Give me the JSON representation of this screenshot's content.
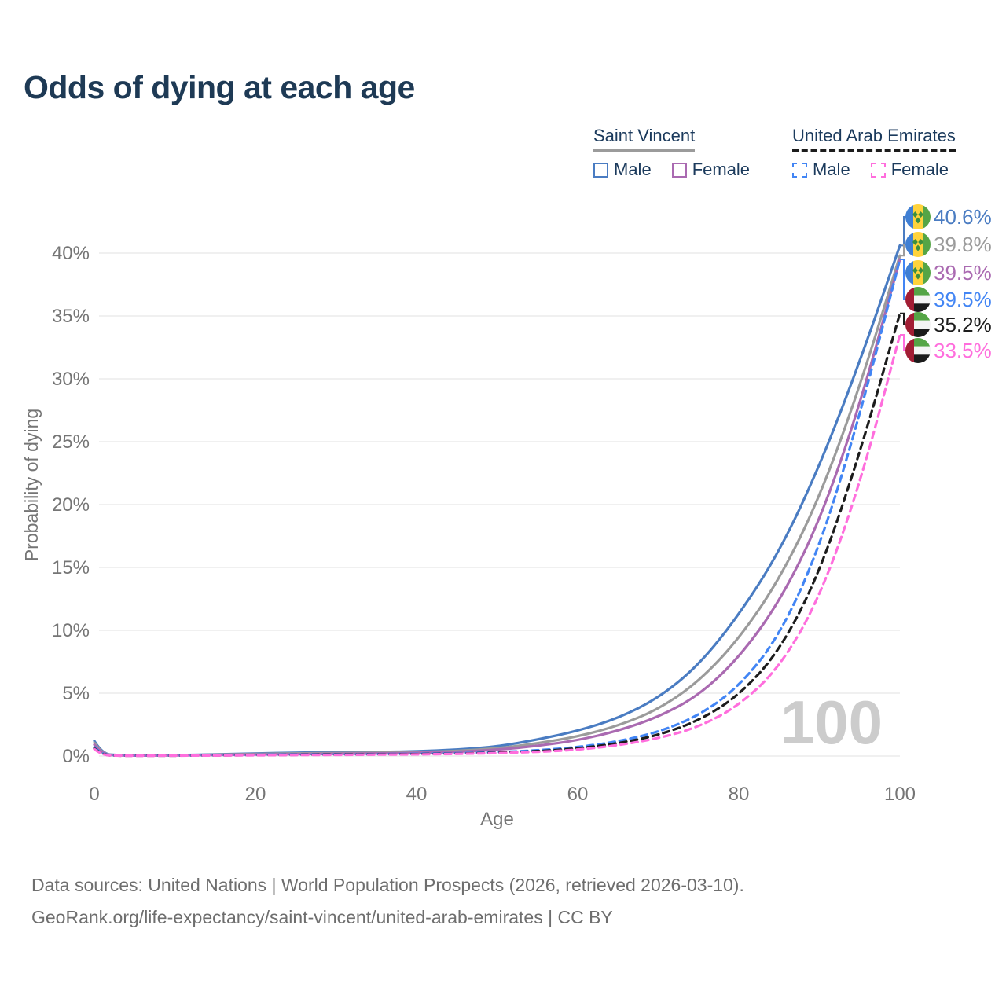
{
  "chart_data": {
    "type": "line",
    "title": "Odds of dying at each age",
    "xlabel": "Age",
    "ylabel": "Probability of dying",
    "watermark": "100",
    "x_tick_values": [
      0,
      20,
      40,
      60,
      80,
      100
    ],
    "x_tick_labels": [
      "0",
      "20",
      "40",
      "60",
      "80",
      "100"
    ],
    "y_tick_values": [
      0,
      5,
      10,
      15,
      20,
      25,
      30,
      35,
      40
    ],
    "y_tick_labels": [
      "0%",
      "5%",
      "10%",
      "15%",
      "20%",
      "25%",
      "30%",
      "35%",
      "40%"
    ],
    "xlim": [
      0,
      100
    ],
    "ylim_pct": [
      0,
      43
    ],
    "grid": "horizontal-only",
    "legend_position": "top-right",
    "ages": [
      0,
      1,
      3,
      5,
      10,
      15,
      20,
      25,
      30,
      35,
      40,
      45,
      50,
      55,
      60,
      65,
      70,
      75,
      80,
      85,
      90,
      95,
      100
    ],
    "series": [
      {
        "name": "Saint Vincent Male",
        "country": "Saint Vincent",
        "sex": "Male",
        "style": "solid",
        "color": "#4a7cc2",
        "flag": "saint-vincent-flag",
        "end_label": "40.6%",
        "end_value": 40.6,
        "values": [
          1.2,
          0.15,
          0.07,
          0.06,
          0.07,
          0.12,
          0.2,
          0.27,
          0.3,
          0.32,
          0.37,
          0.5,
          0.75,
          1.3,
          2.0,
          3.0,
          4.6,
          7.2,
          11.2,
          16.2,
          23.0,
          31.3,
          40.6
        ]
      },
      {
        "name": "Saint Vincent Both sexes",
        "country": "Saint Vincent",
        "sex": "Both",
        "style": "solid",
        "color": "#9b9b9b",
        "flag": "saint-vincent-flag",
        "end_label": "39.8%",
        "end_value": 39.8,
        "values": [
          1.05,
          0.13,
          0.06,
          0.05,
          0.06,
          0.1,
          0.16,
          0.21,
          0.24,
          0.26,
          0.3,
          0.4,
          0.6,
          1.0,
          1.55,
          2.4,
          3.7,
          5.9,
          9.3,
          14.0,
          20.5,
          29.3,
          39.8
        ]
      },
      {
        "name": "Saint Vincent Female",
        "country": "Saint Vincent",
        "sex": "Female",
        "style": "solid",
        "color": "#aa6ab1",
        "flag": "saint-vincent-flag",
        "end_label": "39.5%",
        "end_value": 39.5,
        "values": [
          0.9,
          0.11,
          0.05,
          0.04,
          0.05,
          0.08,
          0.12,
          0.15,
          0.18,
          0.2,
          0.25,
          0.33,
          0.5,
          0.8,
          1.25,
          2.0,
          3.1,
          4.8,
          7.8,
          12.2,
          18.6,
          27.8,
          39.5
        ]
      },
      {
        "name": "United Arab Emirates Male",
        "country": "United Arab Emirates",
        "sex": "Male",
        "style": "dashed",
        "color": "#4285f4",
        "flag": "uae-flag",
        "end_label": "39.5%",
        "end_value": 39.5,
        "values": [
          0.7,
          0.08,
          0.04,
          0.03,
          0.04,
          0.06,
          0.1,
          0.12,
          0.13,
          0.15,
          0.18,
          0.22,
          0.3,
          0.45,
          0.7,
          1.15,
          1.9,
          3.2,
          5.5,
          9.5,
          16.5,
          27.0,
          39.5
        ]
      },
      {
        "name": "United Arab Emirates Both sexes",
        "country": "United Arab Emirates",
        "sex": "Both",
        "style": "dashed",
        "color": "#1c1c1c",
        "flag": "uae-flag",
        "end_label": "35.2%",
        "end_value": 35.2,
        "values": [
          0.6,
          0.07,
          0.03,
          0.03,
          0.03,
          0.05,
          0.08,
          0.1,
          0.11,
          0.13,
          0.15,
          0.19,
          0.26,
          0.38,
          0.6,
          1.0,
          1.65,
          2.8,
          4.8,
          8.3,
          14.5,
          24.0,
          35.2
        ]
      },
      {
        "name": "United Arab Emirates Female",
        "country": "United Arab Emirates",
        "sex": "Female",
        "style": "dashed",
        "color": "#ff6edd",
        "flag": "uae-flag",
        "end_label": "33.5%",
        "end_value": 33.5,
        "values": [
          0.55,
          0.06,
          0.03,
          0.02,
          0.03,
          0.04,
          0.06,
          0.08,
          0.09,
          0.11,
          0.13,
          0.17,
          0.23,
          0.33,
          0.5,
          0.85,
          1.4,
          2.3,
          4.0,
          7.0,
          12.5,
          21.5,
          33.5
        ]
      }
    ]
  },
  "legend": {
    "groups": [
      {
        "country": "Saint Vincent",
        "line_style": "solid",
        "line_color": "#9b9b9b",
        "items": [
          {
            "label": "Male",
            "color": "#4a7cc2",
            "dash": false
          },
          {
            "label": "Female",
            "color": "#aa6ab1",
            "dash": false
          }
        ]
      },
      {
        "country": "United Arab Emirates",
        "line_style": "dashed",
        "line_color": "#1c1c1c",
        "items": [
          {
            "label": "Male",
            "color": "#4285f4",
            "dash": true
          },
          {
            "label": "Female",
            "color": "#ff6edd",
            "dash": true
          }
        ]
      }
    ]
  },
  "footer": {
    "line1": "Data sources: United Nations | World Population Prospects (2026, retrieved 2026-03-10).",
    "line2": "GeoRank.org/life-expectancy/saint-vincent/united-arab-emirates | CC BY"
  },
  "colors": {
    "title": "#1e3a55",
    "legend_text": "#1b3a5c",
    "axis_text": "#757575",
    "gridline": "#ececec",
    "watermark": "#cccccc",
    "footer_text": "#6e6e6e"
  }
}
